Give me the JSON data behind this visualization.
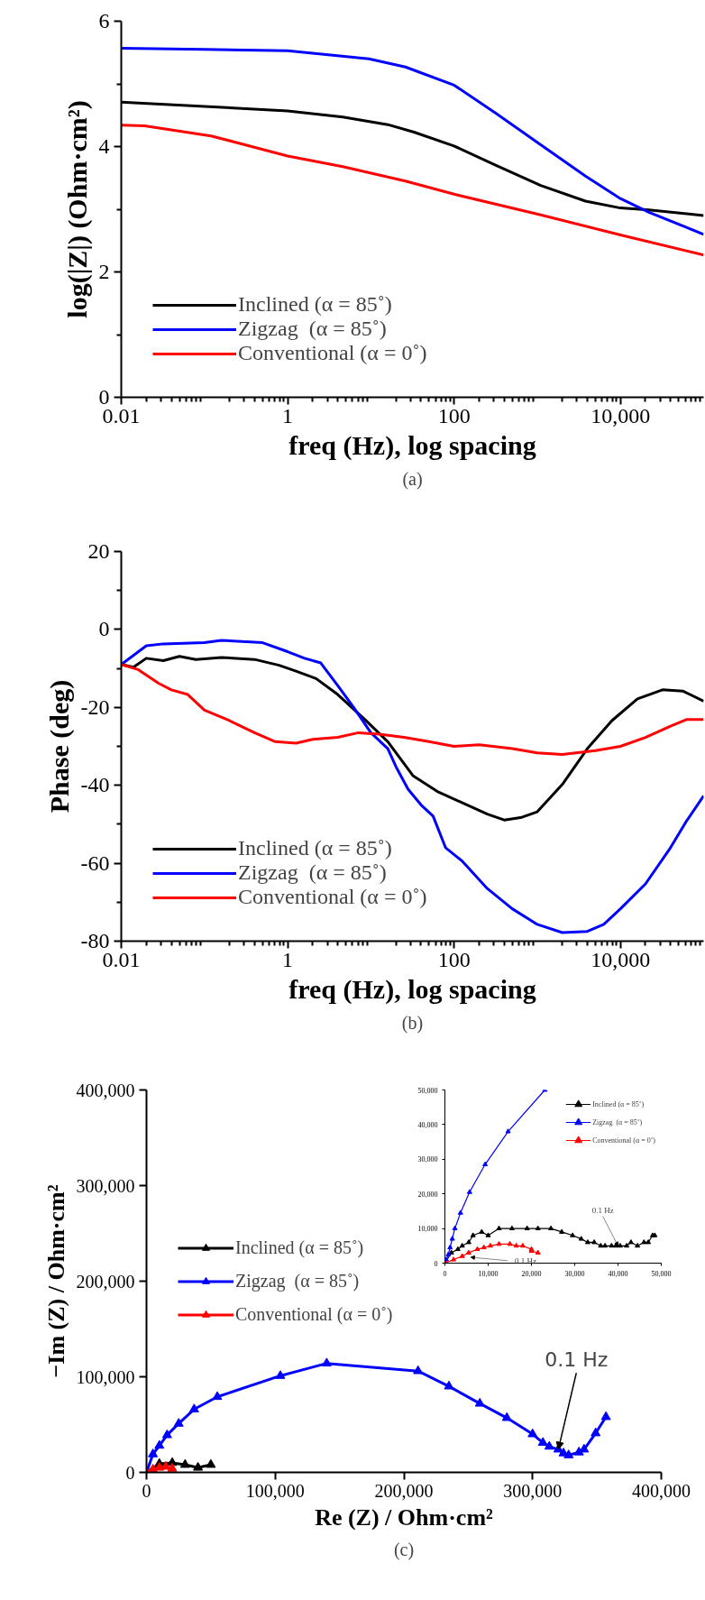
{
  "chart_data": [
    {
      "type": "line",
      "xlabel": "freq (Hz), log spacing",
      "ylabel": "log(|Z|) (Ohm·cm²)",
      "log": "x",
      "legend": "bottom left",
      "annotations": [
        "(a)"
      ],
      "xlim": [
        0.01,
        100000
      ],
      "xticks": [
        0.01,
        1,
        100,
        {
          "value": 10000,
          "label": "10,000"
        }
      ],
      "ylim": [
        0,
        6
      ],
      "yticks": [
        0,
        2,
        4,
        6
      ],
      "series": [
        {
          "name": "Inclined (α = 85˚)",
          "color": "#000000",
          "x": [
            0.01,
            0.1,
            1,
            4.6,
            16,
            33,
            100,
            320,
            1100,
            3800,
            10000,
            22000,
            100000
          ],
          "values": [
            4.71,
            4.64,
            4.57,
            4.47,
            4.35,
            4.23,
            4.01,
            3.7,
            3.38,
            3.13,
            3.02,
            2.99,
            2.9
          ]
        },
        {
          "name": "Zigzag  (α = 85˚)",
          "color": "#0000ff",
          "x": [
            0.01,
            0.1,
            1,
            9.5,
            26,
            100,
            320,
            1100,
            3800,
            10000,
            22000,
            100000
          ],
          "values": [
            5.57,
            5.55,
            5.53,
            5.4,
            5.27,
            4.98,
            4.53,
            4.03,
            3.53,
            3.17,
            2.95,
            2.6
          ]
        },
        {
          "name": "Conventional (α = 0˚)",
          "color": "#ff0000",
          "x": [
            0.01,
            0.019,
            0.12,
            1,
            4.6,
            26,
            100,
            1100,
            10000,
            100000
          ],
          "values": [
            4.34,
            4.33,
            4.17,
            3.85,
            3.68,
            3.45,
            3.24,
            2.91,
            2.59,
            2.27
          ]
        }
      ]
    },
    {
      "type": "line",
      "xlabel": "freq (Hz), log spacing",
      "ylabel": "Phase (deg)",
      "log": "x",
      "legend": "bottom left",
      "annotations": [
        "(b)"
      ],
      "xlim": [
        0.01,
        100000
      ],
      "xticks": [
        0.01,
        1,
        100,
        {
          "value": 10000,
          "label": "10,000"
        }
      ],
      "ylim": [
        -80,
        20
      ],
      "yticks": [
        -80,
        -60,
        -40,
        -20,
        0,
        20
      ],
      "series": [
        {
          "name": "Inclined (α = 85˚)",
          "color": "#000000",
          "x": [
            0.01,
            0.014,
            0.02,
            0.032,
            0.05,
            0.079,
            0.16,
            0.4,
            0.79,
            1.26,
            2.2,
            4,
            7.9,
            16,
            32,
            63,
            126,
            251,
            400,
            630,
            1000,
            2000,
            4000,
            7900,
            16000,
            32000,
            56000,
            100000
          ],
          "values": [
            -9,
            -9.7,
            -7.4,
            -8,
            -6.9,
            -7.7,
            -7.2,
            -7.7,
            -9.2,
            -10.7,
            -12.6,
            -16.7,
            -22.5,
            -28.8,
            -37.5,
            -41.6,
            -44.5,
            -47.4,
            -48.9,
            -48.3,
            -46.8,
            -39.8,
            -30.6,
            -23.4,
            -17.8,
            -15.5,
            -15.8,
            -18.4
          ]
        },
        {
          "name": "Zigzag  (α = 85˚)",
          "color": "#0000ff",
          "x": [
            0.01,
            0.02,
            0.032,
            0.1,
            0.16,
            0.5,
            1,
            1.6,
            2.5,
            4,
            6.3,
            10,
            16,
            20,
            28,
            40,
            56,
            79,
            126,
            251,
            501,
            1000,
            2000,
            4000,
            6300,
            10000,
            20000,
            40000,
            63000,
            100000
          ],
          "values": [
            -9,
            -4.2,
            -3.7,
            -3.4,
            -2.8,
            -3.4,
            -5.7,
            -7.4,
            -8.6,
            -14.4,
            -20.2,
            -26.5,
            -30.6,
            -35.2,
            -41,
            -45,
            -47.9,
            -56,
            -59.5,
            -66.5,
            -71.7,
            -75.7,
            -77.8,
            -77.5,
            -75.7,
            -71.7,
            -65.3,
            -56,
            -49,
            -42.7
          ]
        },
        {
          "name": "Conventional (α = 0˚)",
          "color": "#ff0000",
          "x": [
            0.01,
            0.016,
            0.028,
            0.04,
            0.063,
            0.1,
            0.2,
            0.4,
            0.71,
            1.26,
            2,
            4,
            7.1,
            12.6,
            25,
            50,
            100,
            200,
            500,
            1000,
            2000,
            5000,
            10000,
            20000,
            40000,
            63000,
            100000
          ],
          "values": [
            -9,
            -10.3,
            -13.8,
            -15.5,
            -16.7,
            -20.7,
            -23.4,
            -26.5,
            -28.8,
            -29.2,
            -28.2,
            -27.7,
            -26.5,
            -26.9,
            -27.7,
            -28.8,
            -30,
            -29.6,
            -30.6,
            -31.7,
            -32.1,
            -31.1,
            -30,
            -27.7,
            -24.8,
            -23.1,
            -23.1
          ]
        }
      ]
    },
    {
      "type": "line",
      "marker": "triangle",
      "xlabel": "Re (Z) / Ohm·cm²",
      "ylabel": "−Im (Z) / Ohm·cm²",
      "legend": "left",
      "annotations": [
        {
          "text": "0.1 Hz",
          "x": 320000,
          "y": 24000
        },
        "(c)"
      ],
      "xlim": [
        0,
        400000
      ],
      "xticks": [
        0,
        {
          "value": 100000,
          "label": "100,000"
        },
        {
          "value": 200000,
          "label": "200,000"
        },
        {
          "value": 300000,
          "label": "300,000"
        },
        {
          "value": 400000,
          "label": "400,000"
        }
      ],
      "ylim": [
        0,
        400000
      ],
      "yticks": [
        0,
        {
          "value": 100000,
          "label": "100,000"
        },
        {
          "value": 200000,
          "label": "200,000"
        },
        {
          "value": 300000,
          "label": "300,000"
        },
        {
          "value": 400000,
          "label": "400,000"
        }
      ],
      "series": [
        {
          "name": "Inclined (α = 85˚)",
          "color": "#000000",
          "x": [
            0,
            10000,
            20000,
            30000,
            40000,
            50000
          ],
          "values": [
            0,
            9000,
            10000,
            8000,
            5000,
            8000
          ]
        },
        {
          "name": "Zigzag  (α = 85˚)",
          "color": "#0000ff",
          "x": [
            0,
            5000,
            10000,
            16000,
            25000,
            37000,
            55000,
            104000,
            140000,
            211000,
            235000,
            259000,
            280000,
            300000,
            308000,
            313000,
            320000,
            324000,
            328000,
            336000,
            340000,
            349000,
            357000
          ],
          "values": [
            0,
            19000,
            28000,
            39000,
            51000,
            66000,
            79000,
            101000,
            114000,
            106000,
            90000,
            72000,
            57000,
            40000,
            31000,
            27000,
            24000,
            20000,
            18000,
            21000,
            24000,
            41000,
            58000
          ]
        },
        {
          "name": "Conventional (α = 0˚)",
          "color": "#ff0000",
          "x": [
            0,
            5000,
            10000,
            15000,
            20000
          ],
          "values": [
            0,
            3000,
            5000,
            6000,
            4000
          ]
        }
      ]
    },
    {
      "type": "line",
      "marker": "triangle",
      "legend": "top right",
      "annotations": [
        {
          "text": "0.1 Hz",
          "x": 40000,
          "y": 5000
        },
        {
          "text": "0.1 Hz",
          "x": 6000,
          "y": 1700
        }
      ],
      "xlim": [
        0,
        50000
      ],
      "xticks": [
        0,
        {
          "value": 10000,
          "label": "10,000"
        },
        {
          "value": 20000,
          "label": "20,000"
        },
        {
          "value": 30000,
          "label": "30,000"
        },
        {
          "value": 40000,
          "label": "40,000"
        },
        {
          "value": 50000,
          "label": "50,000"
        }
      ],
      "ylim": [
        0,
        50000
      ],
      "yticks": [
        0,
        {
          "value": 10000,
          "label": "10,000"
        },
        {
          "value": 20000,
          "label": "20,000"
        },
        {
          "value": 30000,
          "label": "30,000"
        },
        {
          "value": 40000,
          "label": "40,000"
        },
        {
          "value": 50000,
          "label": "50,000"
        }
      ],
      "series": [
        {
          "name": "Inclined (α = 85˚)",
          "color": "#000000",
          "x": [
            0,
            1500,
            3000,
            4000,
            5500,
            6500,
            8500,
            10000,
            12500,
            15500,
            19000,
            21500,
            24500,
            27000,
            29500,
            31500,
            33000,
            34500,
            36000,
            37000,
            38500,
            39500,
            40500,
            42000,
            43000,
            44500,
            46000,
            47000,
            48000,
            48500
          ],
          "values": [
            0,
            3000,
            4000,
            5000,
            6000,
            8000,
            9000,
            8000,
            10000,
            10000,
            10000,
            10000,
            10000,
            9000,
            8000,
            7000,
            6000,
            6000,
            5000,
            5000,
            5000,
            5000,
            5000,
            5000,
            6000,
            5000,
            6000,
            6000,
            8000,
            8000
          ]
        },
        {
          "name": "Zigzag  (α = 85˚)",
          "color": "#0000ff",
          "x": [
            0,
            300,
            800,
            1200,
            1700,
            2300,
            3600,
            5700,
            9300,
            14600,
            23100
          ],
          "values": [
            0,
            1000,
            2500,
            4500,
            7000,
            10000,
            14500,
            20500,
            28500,
            38000,
            50000
          ]
        },
        {
          "name": "Conventional (α = 0˚)",
          "color": "#ff0000",
          "x": [
            0,
            2000,
            4000,
            5500,
            7500,
            9000,
            10500,
            12500,
            15000,
            16500,
            18000,
            20000,
            20000,
            21500
          ],
          "values": [
            0,
            1000,
            2000,
            3000,
            4000,
            4500,
            5000,
            5500,
            5500,
            5000,
            5000,
            4000,
            3500,
            3000
          ]
        }
      ]
    }
  ]
}
